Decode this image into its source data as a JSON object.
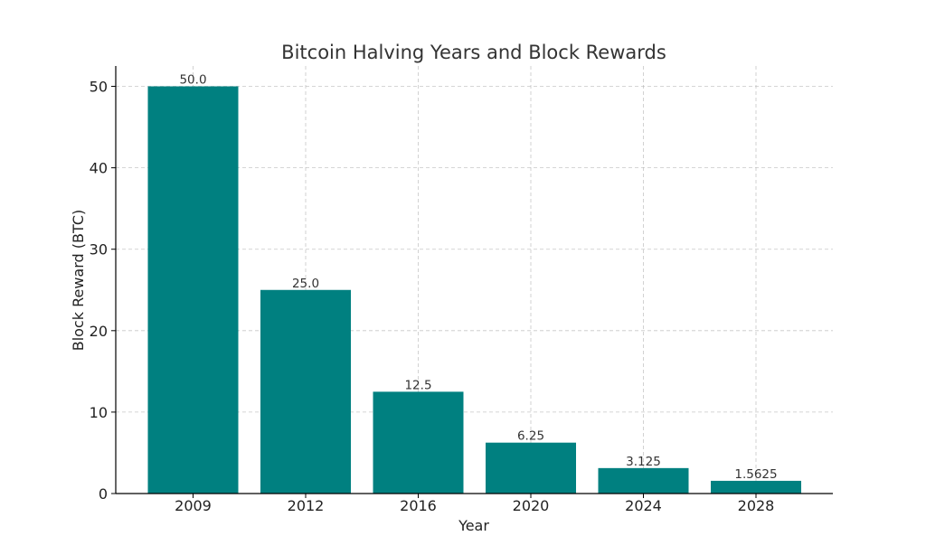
{
  "chart_data": {
    "type": "bar",
    "title": "Bitcoin Halving Years and Block Rewards",
    "xlabel": "Year",
    "ylabel": "Block Reward (BTC)",
    "categories": [
      "2009",
      "2012",
      "2016",
      "2020",
      "2024",
      "2028"
    ],
    "values": [
      50.0,
      25.0,
      12.5,
      6.25,
      3.125,
      1.5625
    ],
    "data_labels": [
      "50.0",
      "25.0",
      "12.5",
      "6.25",
      "3.125",
      "1.5625"
    ],
    "ylim": [
      0,
      52.5
    ],
    "yticks": [
      0,
      10,
      20,
      30,
      40,
      50
    ],
    "grid": true,
    "bar_color": "#008080"
  }
}
